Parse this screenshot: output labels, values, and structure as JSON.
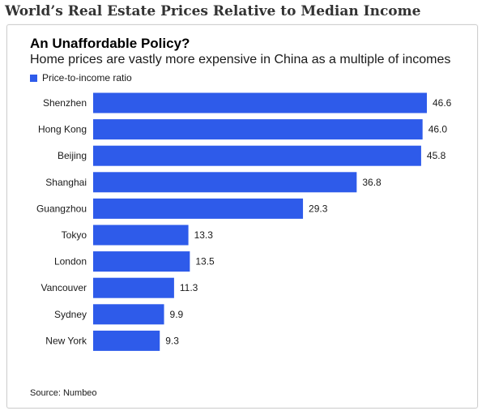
{
  "page": {
    "heading": "World’s Real Estate Prices Relative to Median Income"
  },
  "source": "Source: Numbeo",
  "chart_data": {
    "type": "bar",
    "orientation": "horizontal",
    "title": "An Unaffordable Policy?",
    "subtitle": "Home prices are vastly more expensive in China as a multiple of incomes",
    "categories": [
      "Shenzhen",
      "Hong Kong",
      "Beijing",
      "Shanghai",
      "Guangzhou",
      "Tokyo",
      "London",
      "Vancouver",
      "Sydney",
      "New York"
    ],
    "series": [
      {
        "name": "Price-to-income ratio",
        "color": "#2e5bea",
        "values": [
          46.6,
          46.0,
          45.8,
          36.8,
          29.3,
          13.3,
          13.5,
          11.3,
          9.9,
          9.3
        ],
        "labels": [
          "46.6",
          "46.0",
          "45.8",
          "36.8",
          "29.3",
          "13.3",
          "13.5",
          "11.3",
          "9.9",
          "9.3"
        ]
      }
    ],
    "xlim": [
      0,
      46.6
    ],
    "grid": false,
    "legend_position": "top-left"
  }
}
